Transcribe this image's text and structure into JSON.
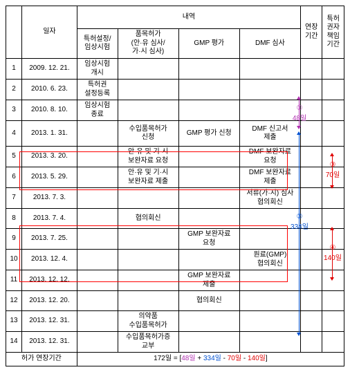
{
  "headers": {
    "date": "일자",
    "detail": "내역",
    "ext_period": "연장\n기간",
    "pat_period": "특허\n권자\n책임\n기간",
    "c1": "특허설정/\n임상시험",
    "c2": "품목허가\n(안·유 심사/\n가·시 심사)",
    "c3": "GMP 평가",
    "c4": "DMF 심사"
  },
  "rows": [
    {
      "no": "1",
      "date": "2009. 12. 21.",
      "c1": "임상시험\n개시",
      "c2": "",
      "c3": "",
      "c4": ""
    },
    {
      "no": "2",
      "date": "2010. 6. 23.",
      "c1": "특허권\n설정등록",
      "c2": "",
      "c3": "",
      "c4": ""
    },
    {
      "no": "3",
      "date": "2010. 8. 10.",
      "c1": "임상시험\n종료",
      "c2": "",
      "c3": "",
      "c4": ""
    },
    {
      "no": "4",
      "date": "2013. 1. 31.",
      "c1": "",
      "c2": "수입품목허가\n신청",
      "c3": "GMP 평가 신청",
      "c4": "DMF 신고서\n제출"
    },
    {
      "no": "5",
      "date": "2013. 3. 20.",
      "c1": "",
      "c2": "안·유 및 기·시\n보완자료 요청",
      "c3": "",
      "c4": "DMF 보완자료\n요청"
    },
    {
      "no": "6",
      "date": "2013. 5. 29.",
      "c1": "",
      "c2": "안·유 및 기·시\n보완자료 제출",
      "c3": "",
      "c4": "DMF 보완자료\n제출"
    },
    {
      "no": "7",
      "date": "2013. 7. 3.",
      "c1": "",
      "c2": "",
      "c3": "",
      "c4": "서류(가·시) 심사\n협의회신"
    },
    {
      "no": "8",
      "date": "2013. 7. 4.",
      "c1": "",
      "c2": "협의회신",
      "c3": "",
      "c4": ""
    },
    {
      "no": "9",
      "date": "2013. 7. 25.",
      "c1": "",
      "c2": "",
      "c3": "GMP 보완자료\n요청",
      "c4": ""
    },
    {
      "no": "10",
      "date": "2013. 12. 4.",
      "c1": "",
      "c2": "",
      "c3": "",
      "c4": "원료(GMP)\n협의회신"
    },
    {
      "no": "11",
      "date": "2013. 12. 12.",
      "c1": "",
      "c2": "",
      "c3": "GMP 보완자료\n제출",
      "c4": ""
    },
    {
      "no": "12",
      "date": "2013. 12. 20.",
      "c1": "",
      "c2": "",
      "c3": "협의회신",
      "c4": ""
    },
    {
      "no": "13",
      "date": "2013. 12. 31.",
      "c1": "",
      "c2": "의약품\n수입품목허가",
      "c3": "",
      "c4": ""
    },
    {
      "no": "14",
      "date": "2013. 12. 31.",
      "c1": "",
      "c2": "수입품목허가증\n교부",
      "c3": "",
      "c4": ""
    }
  ],
  "footer": {
    "label": "허가 연장기간",
    "eq_prefix": "172일 = [",
    "p1": "48일",
    "plus1": " + ",
    "p2": "334일",
    "minus1": " - ",
    "p3": "70일",
    "minus2": " - ",
    "p4": "140일",
    "suffix": "]"
  },
  "annot": {
    "a1_num": "①",
    "a1_val": "48일",
    "a2_num": "②",
    "a2_val": "334일",
    "a3_num": "③",
    "a3_val": "70일",
    "a4_num": "④",
    "a4_val": "140일"
  },
  "colors": {
    "a1": "#b030b0",
    "a2": "#0050d0",
    "a3": "#e00000",
    "a4": "#e00000"
  }
}
